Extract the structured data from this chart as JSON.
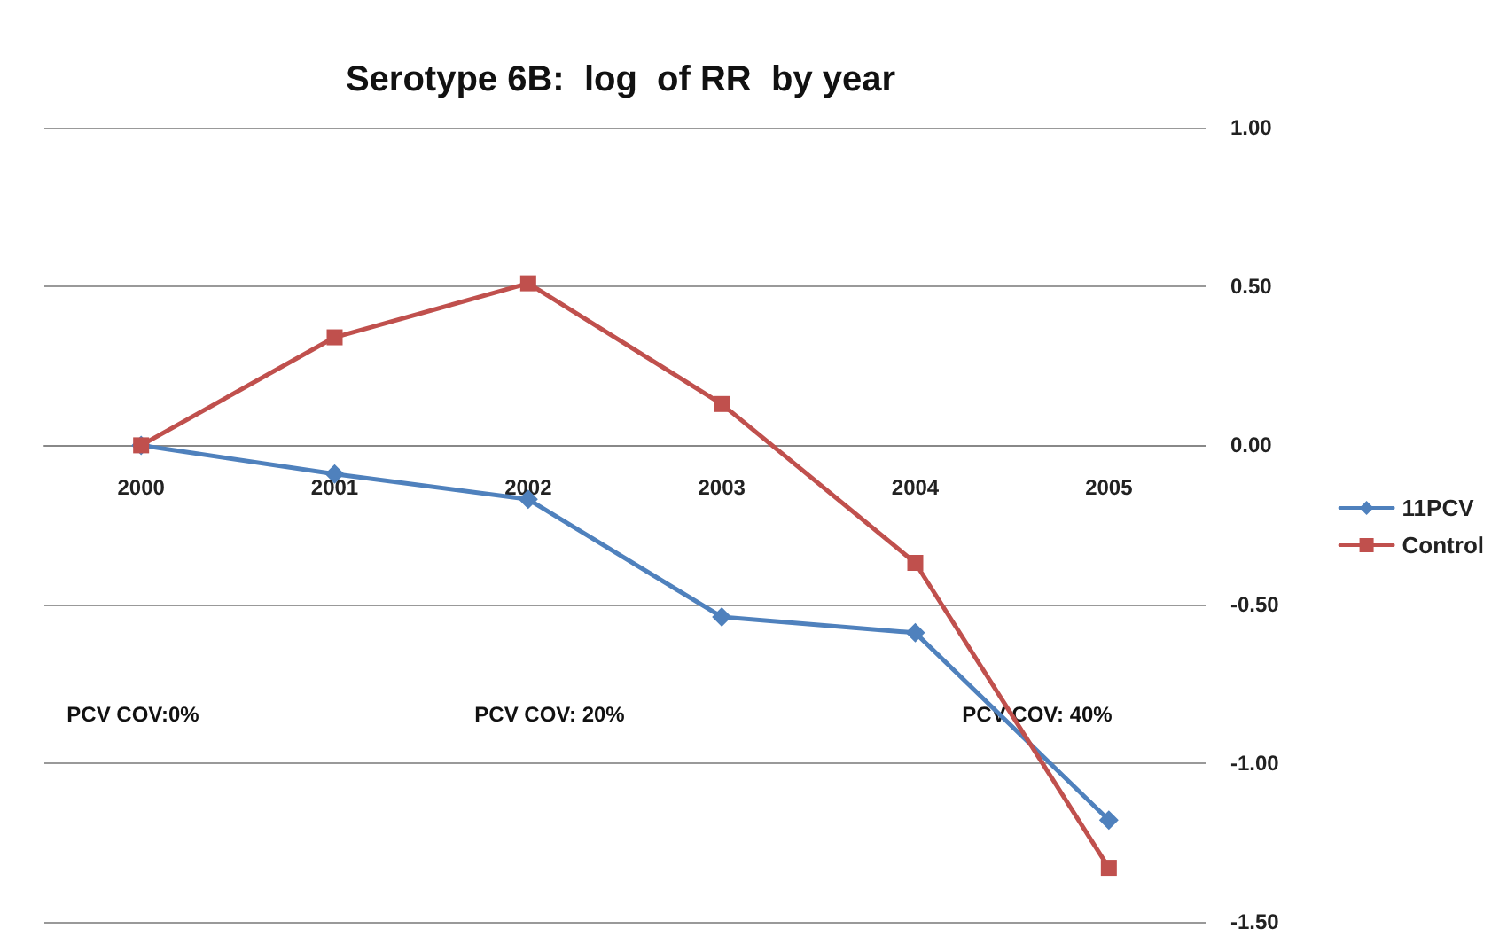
{
  "chart_data": {
    "type": "line",
    "title": "Serotype 6B:  log  of RR  by year",
    "categories": [
      "2000",
      "2001",
      "2002",
      "2003",
      "2004",
      "2005"
    ],
    "series": [
      {
        "name": "11PCV",
        "color": "#4f81bd",
        "marker": "diamond",
        "values": [
          0,
          -0.09,
          -0.17,
          -0.54,
          -0.59,
          -1.18
        ]
      },
      {
        "name": "Control",
        "color": "#c0504d",
        "marker": "square",
        "values": [
          0,
          0.34,
          0.51,
          0.13,
          -0.37,
          -1.33
        ]
      }
    ],
    "ylim": [
      -1.5,
      1
    ],
    "yticks": [
      {
        "value": -1.5,
        "label": "-1.50"
      },
      {
        "value": -1,
        "label": "-1.00"
      },
      {
        "value": -0.5,
        "label": "-0.50"
      },
      {
        "value": 0,
        "label": "0.00"
      },
      {
        "value": 0.5,
        "label": "0.50"
      },
      {
        "value": 1,
        "label": "1.00"
      }
    ],
    "grid": "y",
    "legend": "right",
    "line_style": "solid",
    "annotations": [
      "PCV COV:0%",
      "PCV COV: 20%",
      "PCV COV: 40%"
    ]
  }
}
